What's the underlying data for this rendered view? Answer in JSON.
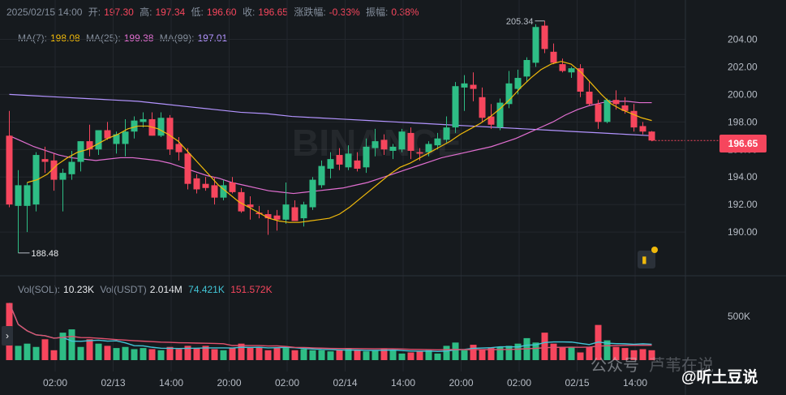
{
  "header": {
    "date": "2025/02/15 14:00",
    "open_label": "开:",
    "open": "197.30",
    "high_label": "高:",
    "high": "197.34",
    "low_label": "低:",
    "low": "196.60",
    "close_label": "收:",
    "close": "196.65",
    "change_label": "涨跌幅:",
    "change": "-0.33%",
    "amp_label": "振幅:",
    "amp": "0.38%"
  },
  "ma": {
    "ma7_label": "MA(7):",
    "ma7": "198.08",
    "ma25_label": "MA(25):",
    "ma25": "199.38",
    "ma99_label": "MA(99):",
    "ma99": "197.01"
  },
  "volume": {
    "label_sol": "Vol(SOL):",
    "sol": "10.23K",
    "label_usdt": "Vol(USDT)",
    "usdt": "2.014M",
    "v1": "74.421K",
    "v2": "151.572K",
    "axis_label": "500K"
  },
  "current_price": "196.65",
  "high_marker": "205.34",
  "low_marker": "188.48",
  "watermark": {
    "a": "公众号",
    "b": "芦苇在说",
    "c": "@听土豆说"
  },
  "colors": {
    "up": "#2ebd85",
    "down": "#f6465d",
    "ma7": "#f0b90b",
    "ma25": "#e26fd1",
    "ma99": "#b394ff",
    "vol_ma1": "#42c5d6",
    "vol_ma2": "#e0516e"
  },
  "chart_data": {
    "type": "candlestick",
    "y_ticks": [
      204.0,
      202.0,
      200.0,
      198.0,
      196.0,
      194.0,
      192.0,
      190.0
    ],
    "ylim": [
      188.0,
      205.8
    ],
    "x_ticks": [
      "02:00",
      "02/13",
      "14:00",
      "20:00",
      "02:00",
      "02/14",
      "14:00",
      "20:00",
      "02:00",
      "02/15",
      "14:00"
    ],
    "candles": [
      {
        "o": 197.0,
        "h": 198.8,
        "l": 191.8,
        "c": 192.0
      },
      {
        "o": 191.9,
        "h": 194.5,
        "l": 188.48,
        "c": 193.4
      },
      {
        "o": 191.9,
        "h": 193.6,
        "l": 190.0,
        "c": 193.4
      },
      {
        "o": 192.0,
        "h": 195.8,
        "l": 191.5,
        "c": 195.6
      },
      {
        "o": 195.3,
        "h": 196.2,
        "l": 194.3,
        "c": 195.1
      },
      {
        "o": 195.2,
        "h": 195.7,
        "l": 193.0,
        "c": 193.8
      },
      {
        "o": 193.8,
        "h": 194.6,
        "l": 191.5,
        "c": 194.3
      },
      {
        "o": 194.2,
        "h": 195.9,
        "l": 193.8,
        "c": 195.1
      },
      {
        "o": 195.1,
        "h": 196.6,
        "l": 194.4,
        "c": 196.6
      },
      {
        "o": 196.6,
        "h": 197.8,
        "l": 195.5,
        "c": 196.0
      },
      {
        "o": 196.0,
        "h": 197.4,
        "l": 195.6,
        "c": 197.4
      },
      {
        "o": 197.4,
        "h": 198.0,
        "l": 196.7,
        "c": 196.8
      },
      {
        "o": 196.4,
        "h": 197.3,
        "l": 195.7,
        "c": 197.1
      },
      {
        "o": 196.4,
        "h": 198.2,
        "l": 195.5,
        "c": 197.3
      },
      {
        "o": 197.3,
        "h": 198.4,
        "l": 196.8,
        "c": 198.1
      },
      {
        "o": 198.0,
        "h": 198.7,
        "l": 197.6,
        "c": 198.2
      },
      {
        "o": 198.2,
        "h": 198.7,
        "l": 197.0,
        "c": 197.0
      },
      {
        "o": 197.0,
        "h": 198.7,
        "l": 196.9,
        "c": 198.3
      },
      {
        "o": 198.3,
        "h": 198.5,
        "l": 195.6,
        "c": 196.0
      },
      {
        "o": 196.4,
        "h": 196.9,
        "l": 195.2,
        "c": 195.8
      },
      {
        "o": 195.7,
        "h": 196.1,
        "l": 193.1,
        "c": 193.5
      },
      {
        "o": 193.9,
        "h": 194.2,
        "l": 192.8,
        "c": 193.1
      },
      {
        "o": 193.5,
        "h": 194.0,
        "l": 193.0,
        "c": 193.2
      },
      {
        "o": 193.4,
        "h": 194.0,
        "l": 192.0,
        "c": 192.5
      },
      {
        "o": 192.5,
        "h": 193.8,
        "l": 192.3,
        "c": 193.4
      },
      {
        "o": 193.6,
        "h": 194.0,
        "l": 192.8,
        "c": 192.9
      },
      {
        "o": 192.9,
        "h": 193.2,
        "l": 191.4,
        "c": 191.5
      },
      {
        "o": 192.0,
        "h": 192.6,
        "l": 190.9,
        "c": 191.8
      },
      {
        "o": 191.4,
        "h": 191.9,
        "l": 191.0,
        "c": 191.3
      },
      {
        "o": 191.3,
        "h": 191.6,
        "l": 189.8,
        "c": 191.0
      },
      {
        "o": 191.2,
        "h": 191.6,
        "l": 190.1,
        "c": 190.9
      },
      {
        "o": 190.9,
        "h": 193.6,
        "l": 190.6,
        "c": 192.0
      },
      {
        "o": 191.8,
        "h": 192.3,
        "l": 190.8,
        "c": 190.8
      },
      {
        "o": 191.0,
        "h": 192.2,
        "l": 190.4,
        "c": 192.0
      },
      {
        "o": 191.8,
        "h": 194.0,
        "l": 191.6,
        "c": 193.8
      },
      {
        "o": 193.4,
        "h": 195.2,
        "l": 193.2,
        "c": 194.8
      },
      {
        "o": 194.6,
        "h": 195.8,
        "l": 193.9,
        "c": 195.3
      },
      {
        "o": 195.6,
        "h": 196.1,
        "l": 194.5,
        "c": 194.9
      },
      {
        "o": 194.7,
        "h": 196.3,
        "l": 194.5,
        "c": 195.7
      },
      {
        "o": 195.2,
        "h": 195.8,
        "l": 194.4,
        "c": 194.6
      },
      {
        "o": 194.7,
        "h": 196.8,
        "l": 194.3,
        "c": 196.2
      },
      {
        "o": 196.1,
        "h": 197.5,
        "l": 195.5,
        "c": 196.6
      },
      {
        "o": 196.7,
        "h": 197.1,
        "l": 195.6,
        "c": 196.0
      },
      {
        "o": 195.9,
        "h": 196.4,
        "l": 195.3,
        "c": 196.2
      },
      {
        "o": 196.0,
        "h": 197.5,
        "l": 195.8,
        "c": 197.3
      },
      {
        "o": 197.2,
        "h": 197.6,
        "l": 195.3,
        "c": 195.9
      },
      {
        "o": 195.8,
        "h": 196.1,
        "l": 195.2,
        "c": 195.7
      },
      {
        "o": 195.8,
        "h": 196.6,
        "l": 195.5,
        "c": 196.4
      },
      {
        "o": 196.3,
        "h": 197.2,
        "l": 196.0,
        "c": 196.8
      },
      {
        "o": 196.7,
        "h": 198.4,
        "l": 196.5,
        "c": 197.6
      },
      {
        "o": 197.6,
        "h": 200.9,
        "l": 197.2,
        "c": 200.6
      },
      {
        "o": 200.5,
        "h": 201.4,
        "l": 198.8,
        "c": 200.8
      },
      {
        "o": 200.7,
        "h": 201.6,
        "l": 199.5,
        "c": 200.4
      },
      {
        "o": 199.8,
        "h": 200.5,
        "l": 198.0,
        "c": 198.3
      },
      {
        "o": 198.4,
        "h": 199.3,
        "l": 197.5,
        "c": 197.8
      },
      {
        "o": 197.6,
        "h": 199.7,
        "l": 197.4,
        "c": 199.4
      },
      {
        "o": 199.3,
        "h": 201.7,
        "l": 199.0,
        "c": 200.8
      },
      {
        "o": 200.4,
        "h": 201.8,
        "l": 200.0,
        "c": 201.2
      },
      {
        "o": 201.3,
        "h": 202.7,
        "l": 200.9,
        "c": 202.5
      },
      {
        "o": 202.3,
        "h": 205.1,
        "l": 202.0,
        "c": 204.9
      },
      {
        "o": 205.0,
        "h": 205.34,
        "l": 203.0,
        "c": 203.3
      },
      {
        "o": 203.1,
        "h": 203.7,
        "l": 202.2,
        "c": 202.3
      },
      {
        "o": 202.2,
        "h": 202.6,
        "l": 201.6,
        "c": 201.7
      },
      {
        "o": 201.6,
        "h": 202.0,
        "l": 201.2,
        "c": 201.9
      },
      {
        "o": 201.9,
        "h": 202.2,
        "l": 199.8,
        "c": 200.2
      },
      {
        "o": 200.2,
        "h": 200.9,
        "l": 199.2,
        "c": 199.3
      },
      {
        "o": 199.3,
        "h": 199.6,
        "l": 197.5,
        "c": 198.0
      },
      {
        "o": 198.0,
        "h": 199.7,
        "l": 197.9,
        "c": 199.6
      },
      {
        "o": 199.6,
        "h": 200.3,
        "l": 198.9,
        "c": 199.3
      },
      {
        "o": 199.2,
        "h": 199.8,
        "l": 198.6,
        "c": 198.8
      },
      {
        "o": 198.8,
        "h": 199.3,
        "l": 197.3,
        "c": 197.6
      },
      {
        "o": 197.7,
        "h": 198.0,
        "l": 197.1,
        "c": 197.3
      },
      {
        "o": 197.3,
        "h": 197.34,
        "l": 196.6,
        "c": 196.65
      }
    ],
    "volumes": [
      520,
      130,
      150,
      120,
      190,
      90,
      250,
      280,
      120,
      190,
      150,
      130,
      110,
      120,
      100,
      110,
      100,
      90,
      120,
      100,
      130,
      110,
      130,
      100,
      90,
      110,
      150,
      120,
      120,
      90,
      110,
      110,
      90,
      100,
      90,
      90,
      80,
      90,
      100,
      90,
      80,
      90,
      100,
      90,
      60,
      70,
      80,
      90,
      60,
      130,
      160,
      90,
      140,
      100,
      110,
      120,
      130,
      150,
      200,
      160,
      250,
      150,
      120,
      120,
      70,
      120,
      320,
      180,
      120,
      110,
      90,
      100,
      90
    ],
    "ma7": [
      193.6,
      193.8,
      194.2,
      194.9,
      195.4,
      195.8,
      196.0,
      196.4,
      196.8,
      197.1,
      197.5,
      197.7,
      197.7,
      197.5,
      197.1,
      196.6,
      195.8,
      195.0,
      194.2,
      193.4,
      192.8,
      192.2,
      191.8,
      191.4,
      191.0,
      190.8,
      190.7,
      190.7,
      190.8,
      190.9,
      191.0,
      191.3,
      191.8,
      192.4,
      193.0,
      193.6,
      194.2,
      194.7,
      195.0,
      195.4,
      195.8,
      196.2,
      196.6,
      197.1,
      197.5,
      197.9,
      198.4,
      199.0,
      199.7,
      200.5,
      201.2,
      201.8,
      202.2,
      202.4,
      202.2,
      201.6,
      200.8,
      200.0,
      199.3,
      198.9,
      198.6,
      198.3,
      198.1
    ],
    "ma25": [
      197.0,
      196.6,
      196.2,
      195.9,
      195.6,
      195.4,
      195.3,
      195.2,
      195.3,
      195.4,
      195.4,
      195.3,
      195.2,
      195.0,
      194.7,
      194.4,
      194.1,
      193.9,
      193.6,
      193.4,
      193.2,
      193.0,
      192.9,
      192.8,
      192.9,
      193.0,
      193.1,
      193.2,
      193.4,
      193.6,
      193.9,
      194.2,
      194.5,
      194.8,
      195.1,
      195.4,
      195.6,
      195.8,
      196.0,
      196.2,
      196.5,
      196.8,
      197.2,
      197.6,
      198.0,
      198.5,
      198.9,
      199.2,
      199.4,
      199.5,
      199.5,
      199.4,
      199.4
    ],
    "ma99": [
      200.0,
      199.9,
      199.8,
      199.7,
      199.6,
      199.5,
      199.3,
      199.1,
      198.9,
      198.7,
      198.6,
      198.4,
      198.3,
      198.2,
      198.1,
      198.0,
      197.9,
      197.8,
      197.7,
      197.6,
      197.5,
      197.4,
      197.3,
      197.2,
      197.1,
      197.0
    ]
  }
}
